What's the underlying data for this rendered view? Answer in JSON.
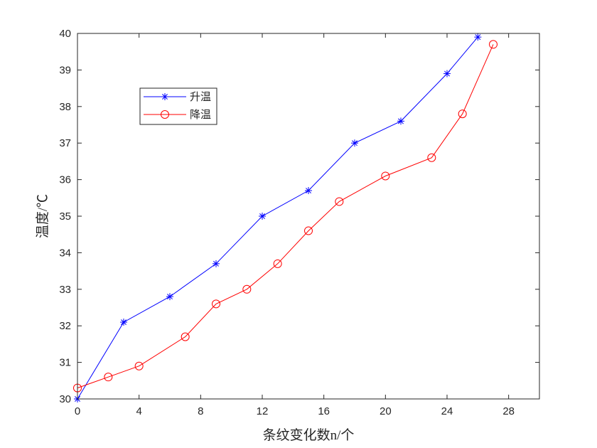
{
  "chart_data": {
    "type": "line",
    "title": "",
    "xlabel": "条纹变化数n/个",
    "ylabel": "温度/℃",
    "xlim": [
      0,
      30
    ],
    "ylim": [
      30,
      40
    ],
    "xticks": [
      "0",
      "4",
      "8",
      "12",
      "16",
      "20",
      "24",
      "28"
    ],
    "yticks": [
      "30",
      "31",
      "32",
      "33",
      "34",
      "35",
      "36",
      "37",
      "38",
      "39",
      "40"
    ],
    "grid": false,
    "legend_position": "upper-left",
    "series": [
      {
        "name": "升温",
        "color": "#0000ff",
        "marker": "asterisk",
        "x": [
          0,
          3,
          6,
          9,
          12,
          15,
          18,
          21,
          24,
          26
        ],
        "y": [
          30.0,
          32.1,
          32.8,
          33.7,
          35.0,
          35.7,
          37.0,
          37.6,
          38.9,
          39.9
        ]
      },
      {
        "name": "降温",
        "color": "#ff0000",
        "marker": "circle",
        "x": [
          0,
          2,
          4,
          7,
          9,
          11,
          13,
          15,
          17,
          20,
          23,
          25,
          27
        ],
        "y": [
          30.3,
          30.6,
          30.9,
          31.7,
          32.6,
          33.0,
          33.7,
          34.6,
          35.4,
          36.1,
          36.6,
          37.8,
          39.7
        ]
      }
    ]
  }
}
